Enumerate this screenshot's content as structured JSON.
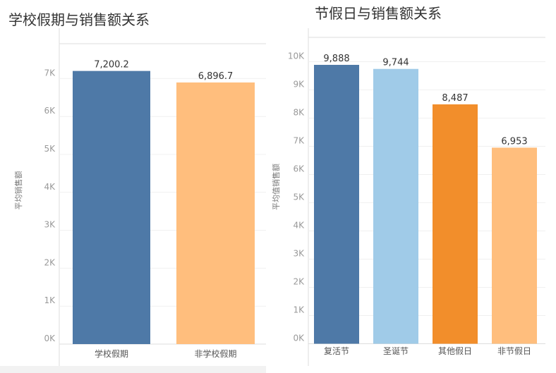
{
  "chart_data": [
    {
      "type": "bar",
      "title": "学校假期与销售额关系",
      "ylabel": "平均销售额",
      "categories": [
        "学校假期",
        "非学校假期"
      ],
      "values": [
        7200.2,
        6896.7
      ],
      "value_labels": [
        "7,200.2",
        "6,896.7"
      ],
      "colors": [
        "#4e79a7",
        "#ffbe7d"
      ],
      "ylim": [
        0,
        8000
      ],
      "ticks": [
        "0K",
        "1K",
        "2K",
        "3K",
        "4K",
        "5K",
        "6K",
        "7K"
      ]
    },
    {
      "type": "bar",
      "title": "节假日与销售额关系",
      "ylabel": "平均值销售额",
      "categories": [
        "复活节",
        "圣诞节",
        "其他假日",
        "非节假日"
      ],
      "values": [
        9888,
        9744,
        8487,
        6953
      ],
      "value_labels": [
        "9,888",
        "9,744",
        "8,487",
        "6,953"
      ],
      "colors": [
        "#4e79a7",
        "#a0cbe8",
        "#f28e2b",
        "#ffbe7d"
      ],
      "ylim": [
        0,
        11000
      ],
      "ticks": [
        "0K",
        "1K",
        "2K",
        "3K",
        "4K",
        "5K",
        "6K",
        "7K",
        "8K",
        "9K",
        "10K"
      ]
    }
  ]
}
